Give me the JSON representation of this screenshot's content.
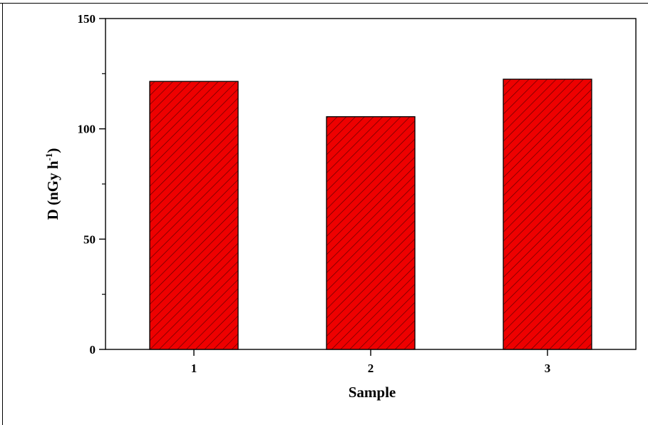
{
  "chart_data": {
    "type": "bar",
    "categories": [
      "1",
      "2",
      "3"
    ],
    "values": [
      121.5,
      105.5,
      122.5
    ],
    "xlabel": "Sample",
    "ylabel": {
      "prefix": "D (nGy h",
      "superscript": "-1",
      "suffix": ")"
    },
    "ylim": [
      0,
      150
    ],
    "yticks": [
      0,
      50,
      100,
      150
    ],
    "ytick_labels": [
      "0",
      "50",
      "100",
      "150"
    ],
    "grid": false,
    "legend": "none",
    "bar_color": "#ee0000",
    "hatch_color": "#5a0000",
    "axis_color": "#000000"
  }
}
